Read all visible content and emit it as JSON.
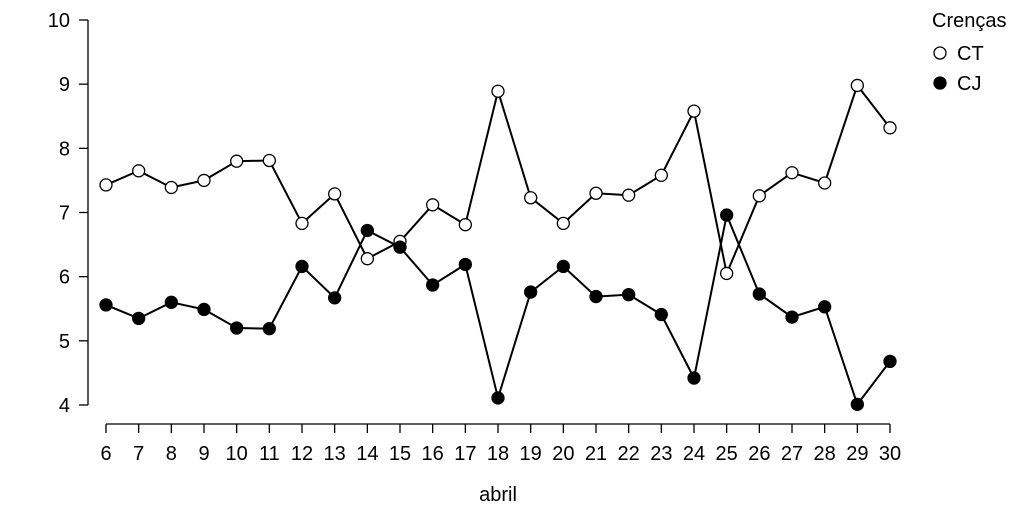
{
  "chart_data": {
    "type": "line",
    "title": "",
    "xlabel": "abril",
    "ylabel": "",
    "x": [
      6,
      7,
      8,
      9,
      10,
      11,
      12,
      13,
      14,
      15,
      16,
      17,
      18,
      19,
      20,
      21,
      22,
      23,
      24,
      25,
      26,
      27,
      28,
      29,
      30
    ],
    "xlim": [
      6,
      30
    ],
    "ylim": [
      4,
      10
    ],
    "yticks": [
      4,
      5,
      6,
      7,
      8,
      9,
      10
    ],
    "grid": false,
    "legend": {
      "title": "Crenças",
      "position": "top-right"
    },
    "series": [
      {
        "name": "CT",
        "marker": "open-circle",
        "fill": "#ffffff",
        "stroke": "#000000",
        "values": [
          7.43,
          7.65,
          7.39,
          7.5,
          7.8,
          7.81,
          6.83,
          7.29,
          6.28,
          6.55,
          7.12,
          6.81,
          8.89,
          7.23,
          6.83,
          7.3,
          7.27,
          7.58,
          8.58,
          6.05,
          7.26,
          7.62,
          7.46,
          8.98,
          8.32
        ]
      },
      {
        "name": "CJ",
        "marker": "filled-circle",
        "fill": "#000000",
        "stroke": "#000000",
        "values": [
          5.56,
          5.35,
          5.6,
          5.49,
          5.2,
          5.19,
          6.16,
          5.67,
          6.72,
          6.46,
          5.87,
          6.19,
          4.11,
          5.76,
          6.16,
          5.69,
          5.72,
          5.41,
          4.42,
          6.96,
          5.73,
          5.37,
          5.53,
          4.01,
          4.68
        ]
      }
    ]
  }
}
